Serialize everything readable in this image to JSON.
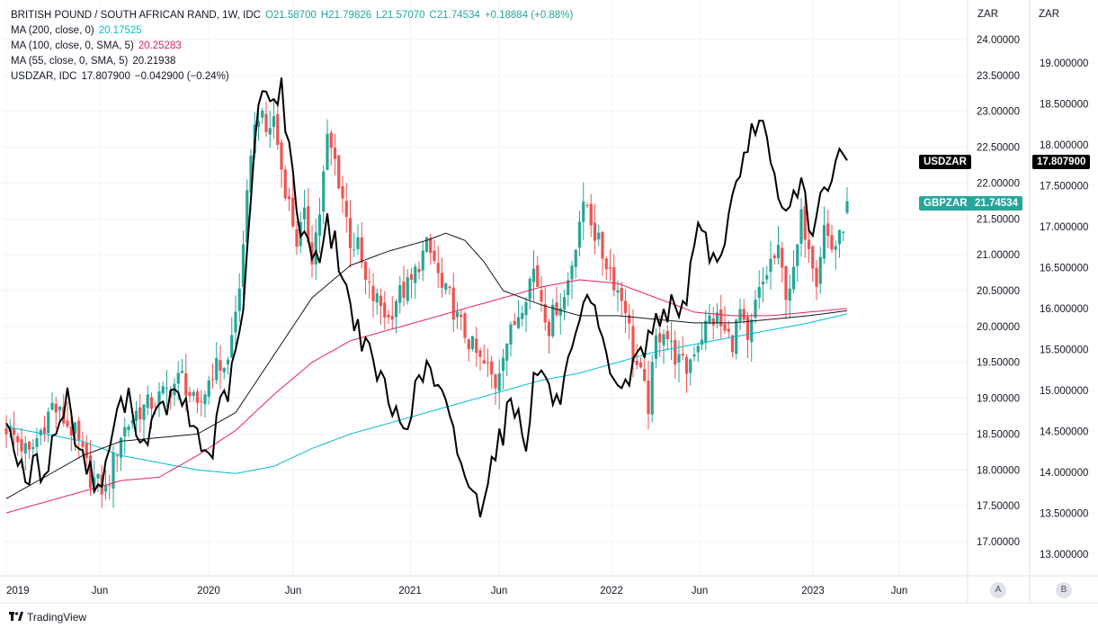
{
  "legend": {
    "symbol": "BRITISH POUND / SOUTH AFRICAN RAND, 1W, IDC",
    "open": "O21.58700",
    "high": "H21.79826",
    "low": "L21.57070",
    "close": "C21.74534",
    "change": "+0.18884 (+0.88%)",
    "ma200_label": "MA (200, close, 0)",
    "ma200_value": "20.17525",
    "ma100_label": "MA (100, close, 0, SMA, 5)",
    "ma100_value": "20.25283",
    "ma55_label": "MA (55, close, 0, SMA, 5)",
    "ma55_value": "20.21938",
    "usd_label": "USDZAR, IDC",
    "usd_value": "17.807900",
    "usd_change": "−0.042900 (−0.24%)"
  },
  "axes": {
    "right_a_header": "ZAR",
    "right_b_header": "ZAR",
    "scale_a": "A",
    "scale_b": "B"
  },
  "tags": {
    "usdzar_name": "USDZAR",
    "usdzar_value": "17.807900",
    "gbpzar_name": "GBPZAR",
    "gbpzar_value": "21.74534"
  },
  "branding": {
    "name": "TradingView"
  },
  "colors": {
    "up": "#26a69a",
    "down": "#ef5350",
    "ma200": "#00bcd4",
    "ma100": "#e91e63",
    "ma55": "#131722",
    "usdzar": "#000000"
  },
  "chart_data": {
    "type": "candlestick",
    "title": "BRITISH POUND / SOUTH AFRICAN RAND, 1W, IDC",
    "x_tick_labels": [
      "2019",
      "Jun",
      "2020",
      "Jun",
      "2021",
      "Jun",
      "2022",
      "Jun",
      "2023",
      "Jun"
    ],
    "axis_a": {
      "name": "GBPZAR",
      "ylim": [
        16.8,
        24.3
      ],
      "ticks": [
        "24.00000",
        "23.50000",
        "23.00000",
        "22.50000",
        "22.00000",
        "21.50000",
        "21.00000",
        "20.50000",
        "20.00000",
        "19.50000",
        "19.00000",
        "18.50000",
        "18.00000",
        "17.50000",
        "17.00000"
      ]
    },
    "axis_b": {
      "name": "USDZAR",
      "ylim": [
        12.6,
        19.8
      ],
      "ticks": [
        "19.000000",
        "18.500000",
        "18.000000",
        "17.500000",
        "17.000000",
        "16.500000",
        "16.000000",
        "15.500000",
        "15.000000",
        "14.500000",
        "14.000000",
        "13.500000",
        "13.000000"
      ]
    },
    "gbpzar_anchors": [
      [
        0,
        18.6
      ],
      [
        6,
        18.2
      ],
      [
        12,
        18.9
      ],
      [
        18,
        18.5
      ],
      [
        22,
        17.9
      ],
      [
        26,
        17.7
      ],
      [
        30,
        18.5
      ],
      [
        34,
        18.8
      ],
      [
        40,
        19.0
      ],
      [
        46,
        19.3
      ],
      [
        50,
        18.8
      ],
      [
        54,
        19.4
      ],
      [
        58,
        19.5
      ],
      [
        60,
        20.2
      ],
      [
        62,
        21.0
      ],
      [
        64,
        22.5
      ],
      [
        66,
        23.0
      ],
      [
        68,
        22.7
      ],
      [
        70,
        22.9
      ],
      [
        72,
        22.2
      ],
      [
        74,
        21.7
      ],
      [
        76,
        21.2
      ],
      [
        78,
        21.5
      ],
      [
        80,
        21.0
      ],
      [
        82,
        21.6
      ],
      [
        84,
        22.6
      ],
      [
        86,
        22.3
      ],
      [
        88,
        21.8
      ],
      [
        90,
        21.2
      ],
      [
        92,
        21.1
      ],
      [
        94,
        20.6
      ],
      [
        96,
        20.4
      ],
      [
        98,
        20.3
      ],
      [
        100,
        20.1
      ],
      [
        102,
        20.4
      ],
      [
        104,
        20.5
      ],
      [
        106,
        20.6
      ],
      [
        108,
        20.9
      ],
      [
        110,
        21.1
      ],
      [
        112,
        20.9
      ],
      [
        114,
        20.5
      ],
      [
        116,
        20.4
      ],
      [
        118,
        20.1
      ],
      [
        120,
        19.9
      ],
      [
        122,
        19.7
      ],
      [
        124,
        19.5
      ],
      [
        126,
        19.4
      ],
      [
        128,
        19.2
      ],
      [
        130,
        19.7
      ],
      [
        132,
        19.9
      ],
      [
        134,
        20.2
      ],
      [
        136,
        20.5
      ],
      [
        138,
        20.8
      ],
      [
        140,
        20.4
      ],
      [
        142,
        20.0
      ],
      [
        144,
        20.3
      ],
      [
        146,
        20.4
      ],
      [
        148,
        20.9
      ],
      [
        150,
        21.5
      ],
      [
        152,
        21.7
      ],
      [
        154,
        21.3
      ],
      [
        156,
        21.0
      ],
      [
        158,
        20.8
      ],
      [
        160,
        20.5
      ],
      [
        162,
        20.3
      ],
      [
        164,
        19.6
      ],
      [
        166,
        19.3
      ],
      [
        168,
        18.9
      ],
      [
        170,
        19.8
      ],
      [
        172,
        20.0
      ],
      [
        174,
        19.7
      ],
      [
        176,
        19.5
      ],
      [
        178,
        19.4
      ],
      [
        180,
        19.7
      ],
      [
        182,
        19.9
      ],
      [
        184,
        20.1
      ],
      [
        186,
        20.1
      ],
      [
        188,
        19.9
      ],
      [
        190,
        19.8
      ],
      [
        192,
        20.2
      ],
      [
        194,
        19.7
      ],
      [
        196,
        20.3
      ],
      [
        198,
        20.6
      ],
      [
        200,
        20.9
      ],
      [
        202,
        21.0
      ],
      [
        204,
        20.5
      ],
      [
        206,
        20.7
      ],
      [
        208,
        21.5
      ],
      [
        210,
        21.2
      ],
      [
        212,
        20.7
      ],
      [
        214,
        21.4
      ],
      [
        216,
        21.1
      ],
      [
        218,
        21.2
      ],
      [
        220,
        21.7
      ]
    ],
    "usdzar_anchors": [
      [
        0,
        14.6
      ],
      [
        3,
        14.2
      ],
      [
        5,
        13.8
      ],
      [
        7,
        14.1
      ],
      [
        10,
        14.0
      ],
      [
        13,
        14.5
      ],
      [
        16,
        14.9
      ],
      [
        19,
        14.3
      ],
      [
        21,
        14.1
      ],
      [
        24,
        13.8
      ],
      [
        26,
        14.0
      ],
      [
        28,
        14.6
      ],
      [
        30,
        14.8
      ],
      [
        33,
        14.9
      ],
      [
        35,
        14.3
      ],
      [
        37,
        14.5
      ],
      [
        40,
        14.7
      ],
      [
        43,
        14.9
      ],
      [
        46,
        14.9
      ],
      [
        48,
        14.6
      ],
      [
        50,
        14.5
      ],
      [
        52,
        14.2
      ],
      [
        54,
        14.3
      ],
      [
        56,
        14.8
      ],
      [
        58,
        15.0
      ],
      [
        60,
        15.4
      ],
      [
        62,
        16.0
      ],
      [
        64,
        17.3
      ],
      [
        66,
        18.5
      ],
      [
        68,
        18.8
      ],
      [
        70,
        18.5
      ],
      [
        72,
        18.7
      ],
      [
        74,
        17.9
      ],
      [
        76,
        17.2
      ],
      [
        78,
        16.9
      ],
      [
        80,
        16.7
      ],
      [
        82,
        16.7
      ],
      [
        84,
        17.0
      ],
      [
        86,
        16.8
      ],
      [
        88,
        16.4
      ],
      [
        90,
        16.0
      ],
      [
        92,
        15.8
      ],
      [
        94,
        15.5
      ],
      [
        96,
        15.3
      ],
      [
        98,
        15.2
      ],
      [
        100,
        14.8
      ],
      [
        102,
        14.7
      ],
      [
        104,
        14.6
      ],
      [
        106,
        14.8
      ],
      [
        108,
        15.1
      ],
      [
        110,
        15.3
      ],
      [
        112,
        15.1
      ],
      [
        114,
        14.9
      ],
      [
        116,
        14.6
      ],
      [
        118,
        14.3
      ],
      [
        120,
        14.0
      ],
      [
        122,
        13.7
      ],
      [
        124,
        13.6
      ],
      [
        126,
        14.0
      ],
      [
        128,
        14.3
      ],
      [
        130,
        14.5
      ],
      [
        132,
        14.9
      ],
      [
        134,
        14.7
      ],
      [
        136,
        14.4
      ],
      [
        138,
        15.1
      ],
      [
        140,
        15.3
      ],
      [
        142,
        15.0
      ],
      [
        144,
        14.8
      ],
      [
        146,
        15.1
      ],
      [
        148,
        15.4
      ],
      [
        150,
        15.7
      ],
      [
        152,
        16.1
      ],
      [
        154,
        15.9
      ],
      [
        156,
        15.5
      ],
      [
        158,
        15.3
      ],
      [
        160,
        15.1
      ],
      [
        162,
        15.0
      ],
      [
        164,
        15.3
      ],
      [
        166,
        15.5
      ],
      [
        168,
        15.6
      ],
      [
        170,
        15.9
      ],
      [
        172,
        16.0
      ],
      [
        174,
        16.0
      ],
      [
        176,
        15.8
      ],
      [
        178,
        16.2
      ],
      [
        180,
        16.8
      ],
      [
        182,
        17.1
      ],
      [
        184,
        16.7
      ],
      [
        186,
        16.5
      ],
      [
        188,
        16.9
      ],
      [
        190,
        17.3
      ],
      [
        192,
        17.5
      ],
      [
        194,
        18.0
      ],
      [
        196,
        18.3
      ],
      [
        198,
        18.2
      ],
      [
        200,
        17.7
      ],
      [
        202,
        17.3
      ],
      [
        204,
        17.1
      ],
      [
        206,
        17.4
      ],
      [
        208,
        17.6
      ],
      [
        210,
        17.0
      ],
      [
        212,
        17.1
      ],
      [
        214,
        17.4
      ],
      [
        216,
        17.5
      ],
      [
        218,
        17.9
      ],
      [
        220,
        17.81
      ]
    ],
    "ma200_anchors": [
      [
        0,
        18.6
      ],
      [
        10,
        18.5
      ],
      [
        20,
        18.4
      ],
      [
        30,
        18.2
      ],
      [
        40,
        18.1
      ],
      [
        50,
        18.0
      ],
      [
        60,
        17.95
      ],
      [
        70,
        18.05
      ],
      [
        80,
        18.3
      ],
      [
        90,
        18.5
      ],
      [
        100,
        18.65
      ],
      [
        110,
        18.8
      ],
      [
        120,
        18.95
      ],
      [
        130,
        19.1
      ],
      [
        140,
        19.25
      ],
      [
        150,
        19.35
      ],
      [
        160,
        19.5
      ],
      [
        170,
        19.65
      ],
      [
        180,
        19.75
      ],
      [
        190,
        19.85
      ],
      [
        200,
        19.95
      ],
      [
        210,
        20.05
      ],
      [
        220,
        20.175
      ]
    ],
    "ma100_anchors": [
      [
        0,
        17.4
      ],
      [
        10,
        17.55
      ],
      [
        20,
        17.7
      ],
      [
        30,
        17.85
      ],
      [
        40,
        17.9
      ],
      [
        50,
        18.2
      ],
      [
        60,
        18.55
      ],
      [
        70,
        19.05
      ],
      [
        80,
        19.5
      ],
      [
        90,
        19.8
      ],
      [
        100,
        19.95
      ],
      [
        110,
        20.1
      ],
      [
        120,
        20.25
      ],
      [
        130,
        20.4
      ],
      [
        140,
        20.55
      ],
      [
        150,
        20.65
      ],
      [
        160,
        20.6
      ],
      [
        170,
        20.4
      ],
      [
        180,
        20.2
      ],
      [
        190,
        20.15
      ],
      [
        200,
        20.15
      ],
      [
        210,
        20.2
      ],
      [
        220,
        20.25
      ]
    ],
    "ma55_anchors": [
      [
        0,
        17.6
      ],
      [
        10,
        17.9
      ],
      [
        20,
        18.2
      ],
      [
        30,
        18.4
      ],
      [
        40,
        18.45
      ],
      [
        50,
        18.5
      ],
      [
        60,
        18.8
      ],
      [
        70,
        19.6
      ],
      [
        80,
        20.4
      ],
      [
        90,
        20.85
      ],
      [
        100,
        21.05
      ],
      [
        110,
        21.2
      ],
      [
        115,
        21.3
      ],
      [
        120,
        21.2
      ],
      [
        125,
        20.9
      ],
      [
        130,
        20.5
      ],
      [
        140,
        20.3
      ],
      [
        150,
        20.15
      ],
      [
        160,
        20.15
      ],
      [
        170,
        20.1
      ],
      [
        180,
        20.05
      ],
      [
        190,
        20.05
      ],
      [
        200,
        20.1
      ],
      [
        210,
        20.15
      ],
      [
        220,
        20.22
      ]
    ],
    "weeks": 220
  }
}
